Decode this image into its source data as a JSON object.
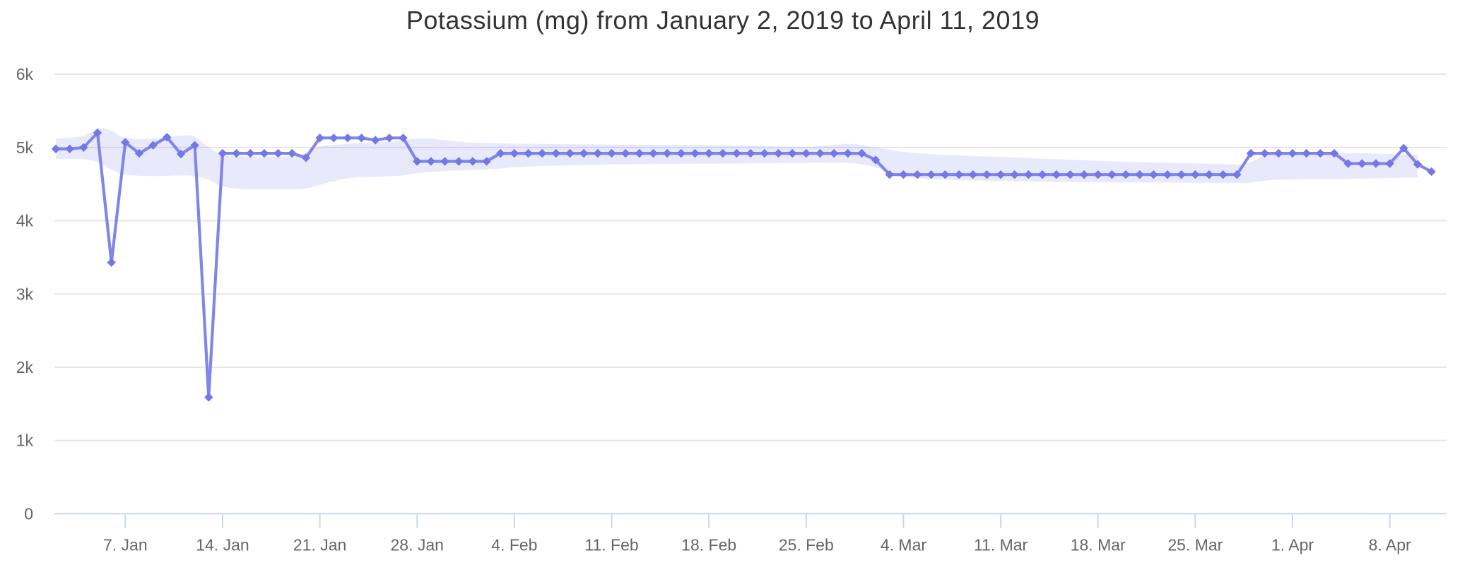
{
  "chart": {
    "title": "Potassium (mg) from January 2, 2019 to April 11, 2019"
  },
  "chart_data": {
    "type": "line",
    "title": "Potassium (mg) from January 2, 2019 to April 11, 2019",
    "series_name": "Potassium (mg)",
    "start_date": "2019-01-02",
    "end_date": "2019-04-11",
    "interval": "daily",
    "ylim": [
      0,
      6000
    ],
    "grid": true,
    "legend": false,
    "marker_shape": "diamond",
    "values": [
      4980,
      4980,
      5000,
      5200,
      3430,
      5070,
      4920,
      5030,
      5140,
      4910,
      5030,
      1590,
      4920,
      4920,
      4920,
      4920,
      4920,
      4920,
      4860,
      5130,
      5130,
      5130,
      5130,
      5100,
      5130,
      5130,
      4810,
      4810,
      4810,
      4810,
      4810,
      4810,
      4920,
      4920,
      4920,
      4920,
      4920,
      4920,
      4920,
      4920,
      4920,
      4920,
      4920,
      4920,
      4920,
      4920,
      4920,
      4920,
      4920,
      4920,
      4920,
      4920,
      4920,
      4920,
      4920,
      4920,
      4920,
      4920,
      4920,
      4830,
      4630,
      4630,
      4630,
      4630,
      4630,
      4630,
      4630,
      4630,
      4630,
      4630,
      4630,
      4630,
      4630,
      4630,
      4630,
      4630,
      4630,
      4630,
      4630,
      4630,
      4630,
      4630,
      4630,
      4630,
      4630,
      4630,
      4920,
      4920,
      4920,
      4920,
      4920,
      4920,
      4920,
      4780,
      4780,
      4780,
      4780,
      4990,
      4770,
      4670
    ],
    "x_ticks": [
      {
        "day": 5,
        "label": "7. Jan"
      },
      {
        "day": 12,
        "label": "14. Jan"
      },
      {
        "day": 19,
        "label": "21. Jan"
      },
      {
        "day": 26,
        "label": "28. Jan"
      },
      {
        "day": 33,
        "label": "4. Feb"
      },
      {
        "day": 40,
        "label": "11. Feb"
      },
      {
        "day": 47,
        "label": "18. Feb"
      },
      {
        "day": 54,
        "label": "25. Feb"
      },
      {
        "day": 61,
        "label": "4. Mar"
      },
      {
        "day": 68,
        "label": "11. Mar"
      },
      {
        "day": 75,
        "label": "18. Mar"
      },
      {
        "day": 82,
        "label": "25. Mar"
      },
      {
        "day": 89,
        "label": "1. Apr"
      },
      {
        "day": 96,
        "label": "8. Apr"
      }
    ],
    "y_ticks": [
      {
        "value": 0,
        "label": "0"
      },
      {
        "value": 1000,
        "label": "1k"
      },
      {
        "value": 2000,
        "label": "2k"
      },
      {
        "value": 3000,
        "label": "3k"
      },
      {
        "value": 4000,
        "label": "4k"
      },
      {
        "value": 5000,
        "label": "5k"
      },
      {
        "value": 6000,
        "label": "6k"
      }
    ],
    "band": {
      "description": "pale shaded range band around the series (approximate envelope)",
      "top": [
        [
          0,
          5120
        ],
        [
          2,
          5160
        ],
        [
          3,
          5260
        ],
        [
          4,
          5230
        ],
        [
          5,
          5130
        ],
        [
          7,
          5120
        ],
        [
          9,
          5160
        ],
        [
          10,
          5150
        ],
        [
          11,
          5000
        ],
        [
          12,
          4900
        ],
        [
          13,
          4880
        ],
        [
          17,
          4880
        ],
        [
          18,
          4920
        ],
        [
          19,
          5010
        ],
        [
          21,
          5050
        ],
        [
          24,
          5080
        ],
        [
          26,
          5120
        ],
        [
          27,
          5120
        ],
        [
          29,
          5080
        ],
        [
          31,
          5060
        ],
        [
          34,
          5050
        ],
        [
          40,
          5040
        ],
        [
          48,
          5030
        ],
        [
          54,
          5010
        ],
        [
          57,
          5050
        ],
        [
          59,
          5000
        ],
        [
          61,
          4940
        ],
        [
          64,
          4900
        ],
        [
          68,
          4870
        ],
        [
          72,
          4840
        ],
        [
          76,
          4810
        ],
        [
          80,
          4790
        ],
        [
          84,
          4775
        ],
        [
          85,
          4770
        ],
        [
          86,
          4800
        ],
        [
          87,
          4900
        ],
        [
          88,
          4925
        ],
        [
          92,
          4925
        ],
        [
          95,
          4915
        ],
        [
          98,
          4900
        ]
      ],
      "bottom": [
        [
          0,
          4845
        ],
        [
          2,
          4840
        ],
        [
          3,
          4800
        ],
        [
          4,
          4700
        ],
        [
          5,
          4630
        ],
        [
          7,
          4610
        ],
        [
          9,
          4620
        ],
        [
          10,
          4610
        ],
        [
          11,
          4560
        ],
        [
          12,
          4470
        ],
        [
          13,
          4440
        ],
        [
          14,
          4430
        ],
        [
          17,
          4430
        ],
        [
          18,
          4440
        ],
        [
          19,
          4490
        ],
        [
          21,
          4580
        ],
        [
          23,
          4600
        ],
        [
          25,
          4620
        ],
        [
          26,
          4650
        ],
        [
          28,
          4680
        ],
        [
          31,
          4700
        ],
        [
          34,
          4740
        ],
        [
          40,
          4770
        ],
        [
          48,
          4780
        ],
        [
          54,
          4790
        ],
        [
          57,
          4790
        ],
        [
          59,
          4730
        ],
        [
          60,
          4640
        ],
        [
          61,
          4600
        ],
        [
          63,
          4570
        ],
        [
          66,
          4550
        ],
        [
          70,
          4535
        ],
        [
          75,
          4525
        ],
        [
          80,
          4520
        ],
        [
          85,
          4515
        ],
        [
          86,
          4520
        ],
        [
          87,
          4545
        ],
        [
          88,
          4560
        ],
        [
          92,
          4570
        ],
        [
          95,
          4580
        ],
        [
          98,
          4590
        ]
      ]
    },
    "colors": {
      "line": "#8085e9",
      "marker": "#7378e6",
      "band": "rgba(128,133,233,0.18)",
      "grid": "#e6e6e6",
      "axis_line": "#ccd6eb",
      "labels": "#666666",
      "title": "#333333"
    }
  }
}
